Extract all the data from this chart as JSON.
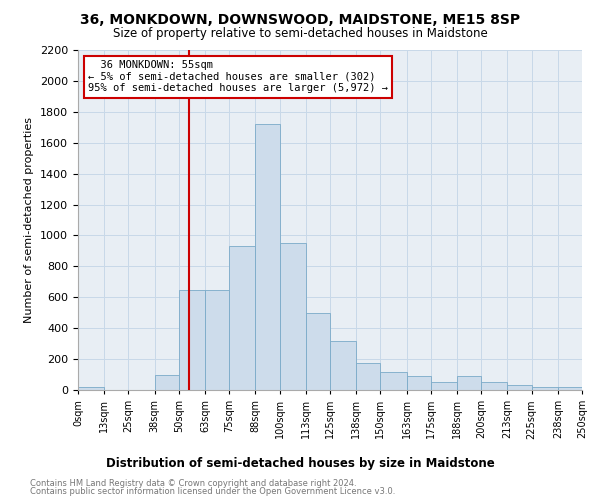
{
  "title": "36, MONKDOWN, DOWNSWOOD, MAIDSTONE, ME15 8SP",
  "subtitle": "Size of property relative to semi-detached houses in Maidstone",
  "xlabel": "Distribution of semi-detached houses by size in Maidstone",
  "ylabel": "Number of semi-detached properties",
  "property_size": 55,
  "annotation_line1": "36 MONKDOWN: 55sqm",
  "annotation_line2": "← 5% of semi-detached houses are smaller (302)",
  "annotation_line3": "95% of semi-detached houses are larger (5,972) →",
  "bar_color": "#cddceb",
  "bar_edge_color": "#7aaac8",
  "marker_line_color": "#cc0000",
  "annotation_box_edge": "#cc0000",
  "grid_color": "#c8d8e8",
  "bg_color": "#e8eef4",
  "bins": [
    0,
    13,
    25,
    38,
    50,
    63,
    75,
    88,
    100,
    113,
    125,
    138,
    150,
    163,
    175,
    188,
    200,
    213,
    225,
    238,
    250
  ],
  "bin_labels": [
    "0sqm",
    "13sqm",
    "25sqm",
    "38sqm",
    "50sqm",
    "63sqm",
    "75sqm",
    "88sqm",
    "100sqm",
    "113sqm",
    "125sqm",
    "138sqm",
    "150sqm",
    "163sqm",
    "175sqm",
    "188sqm",
    "200sqm",
    "213sqm",
    "225sqm",
    "238sqm",
    "250sqm"
  ],
  "counts": [
    20,
    0,
    0,
    100,
    650,
    650,
    930,
    1720,
    950,
    500,
    320,
    175,
    115,
    90,
    50,
    90,
    55,
    30,
    20,
    20
  ],
  "ylim": [
    0,
    2200
  ],
  "yticks": [
    0,
    200,
    400,
    600,
    800,
    1000,
    1200,
    1400,
    1600,
    1800,
    2000,
    2200
  ],
  "footnote1": "Contains HM Land Registry data © Crown copyright and database right 2024.",
  "footnote2": "Contains public sector information licensed under the Open Government Licence v3.0."
}
